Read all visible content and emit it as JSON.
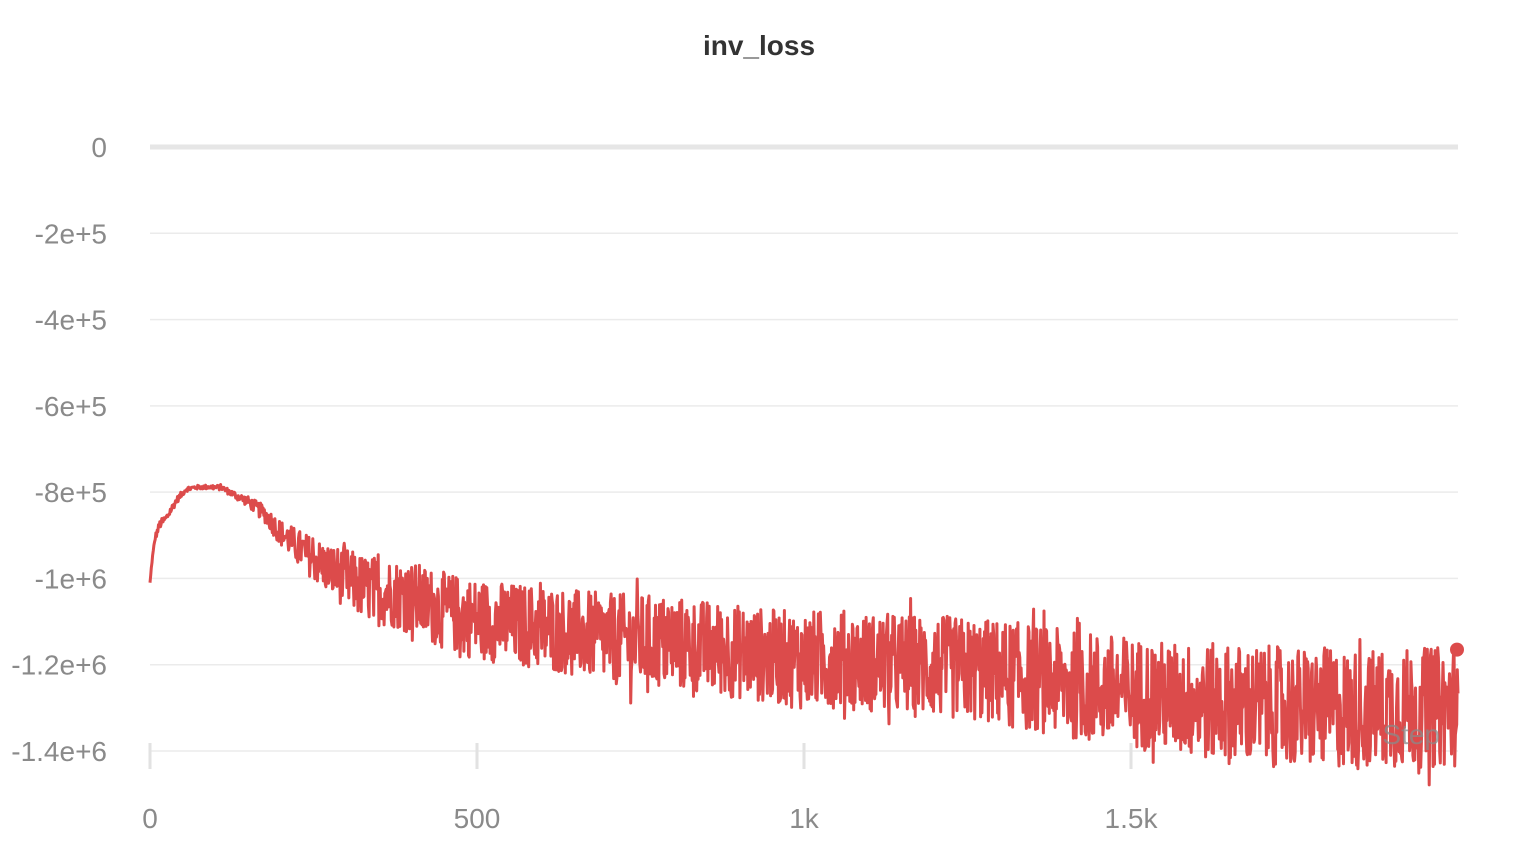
{
  "chart_data": {
    "type": "line",
    "title": "inv_loss",
    "xlabel": "Step",
    "ylabel": "",
    "xlim": [
      0,
      2000
    ],
    "ylim": [
      -1400000,
      0
    ],
    "x_ticks": [
      {
        "value": 0,
        "label": "0"
      },
      {
        "value": 500,
        "label": "500"
      },
      {
        "value": 1000,
        "label": "1k"
      },
      {
        "value": 1500,
        "label": "1.5k"
      }
    ],
    "y_ticks": [
      {
        "value": 0,
        "label": "0"
      },
      {
        "value": -200000,
        "label": "-2e+5"
      },
      {
        "value": -400000,
        "label": "-4e+5"
      },
      {
        "value": -600000,
        "label": "-6e+5"
      },
      {
        "value": -800000,
        "label": "-8e+5"
      },
      {
        "value": -1000000,
        "label": "-1e+6"
      },
      {
        "value": -1200000,
        "label": "-1.2e+6"
      },
      {
        "value": -1400000,
        "label": "-1.4e+6"
      }
    ],
    "grid": true,
    "series": [
      {
        "color": "#dc4b4b",
        "x": [
          0,
          3,
          8,
          15,
          25,
          40,
          55,
          70,
          90,
          110,
          125,
          150,
          175,
          200,
          225,
          250,
          275,
          300,
          325,
          350,
          375,
          400,
          450,
          500,
          550,
          600,
          650,
          700,
          750,
          800,
          850,
          900,
          950,
          1000,
          1050,
          1100,
          1150,
          1200,
          1250,
          1300,
          1350,
          1400,
          1450,
          1500,
          1550,
          1600,
          1650,
          1700,
          1750,
          1800,
          1850,
          1900,
          1950,
          2000
        ],
        "center": [
          -1010000,
          -960000,
          -905000,
          -875000,
          -860000,
          -820000,
          -793000,
          -789000,
          -788000,
          -790000,
          -803000,
          -822000,
          -850000,
          -895000,
          -925000,
          -955000,
          -980000,
          -1000000,
          -1020000,
          -1030000,
          -1035000,
          -1045000,
          -1075000,
          -1095000,
          -1105000,
          -1115000,
          -1125000,
          -1140000,
          -1145000,
          -1150000,
          -1160000,
          -1170000,
          -1180000,
          -1190000,
          -1185000,
          -1195000,
          -1200000,
          -1205000,
          -1210000,
          -1220000,
          -1230000,
          -1245000,
          -1255000,
          -1265000,
          -1275000,
          -1285000,
          -1290000,
          -1295000,
          -1300000,
          -1300000,
          -1305000,
          -1300000,
          -1300000,
          -1295000
        ],
        "spread": [
          0,
          5000,
          8000,
          10000,
          10000,
          8000,
          6000,
          5000,
          5000,
          6000,
          8000,
          12000,
          20000,
          30000,
          40000,
          50000,
          60000,
          70000,
          75000,
          80000,
          80000,
          85000,
          90000,
          95000,
          95000,
          100000,
          100000,
          105000,
          110000,
          110000,
          110000,
          110000,
          110000,
          115000,
          115000,
          115000,
          120000,
          120000,
          120000,
          125000,
          125000,
          125000,
          130000,
          130000,
          130000,
          135000,
          140000,
          140000,
          140000,
          140000,
          140000,
          140000,
          140000,
          140000
        ],
        "last_value": -1165000
      }
    ]
  }
}
